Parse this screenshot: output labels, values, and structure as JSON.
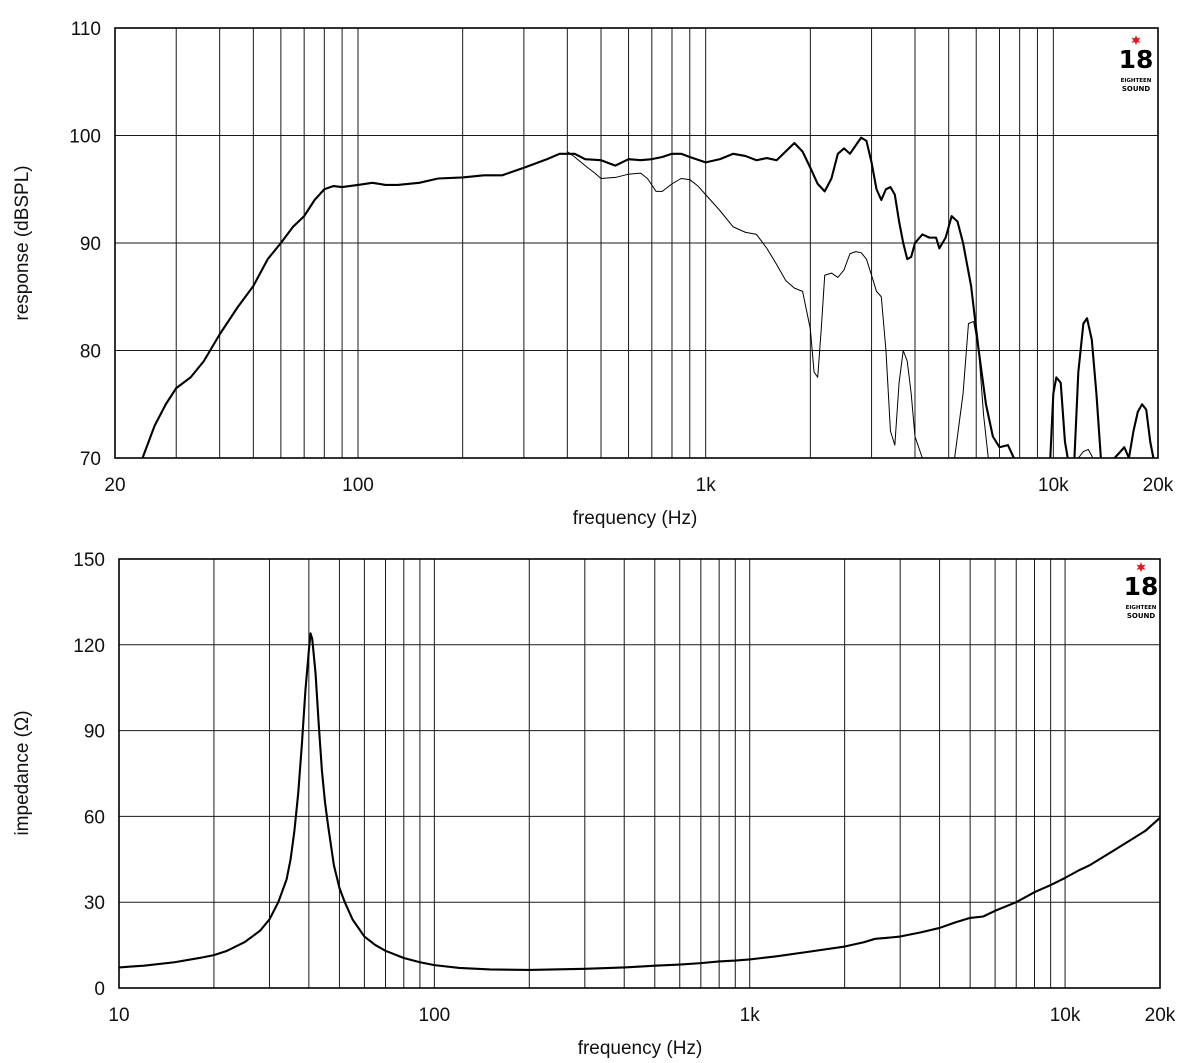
{
  "chart_data": [
    {
      "type": "line",
      "xscale": "log",
      "xlabel": "frequency (Hz)",
      "ylabel": "response (dBSPL)",
      "xlim": [
        20,
        20000
      ],
      "ylim": [
        70,
        110
      ],
      "x_ticks": [
        20,
        100,
        1000,
        10000,
        20000
      ],
      "x_tick_labels": [
        "20",
        "100",
        "1k",
        "10k",
        "20k"
      ],
      "y_ticks": [
        70,
        80,
        90,
        100,
        110
      ],
      "y_tick_labels": [
        "70",
        "80",
        "90",
        "100",
        "110"
      ],
      "grid": true,
      "series": [
        {
          "style": "thick",
          "points": [
            [
              24,
              70
            ],
            [
              26,
              73
            ],
            [
              28,
              75
            ],
            [
              30,
              76.5
            ],
            [
              33,
              77.5
            ],
            [
              36,
              79
            ],
            [
              40,
              81.5
            ],
            [
              45,
              84
            ],
            [
              50,
              86
            ],
            [
              55,
              88.5
            ],
            [
              60,
              90
            ],
            [
              65,
              91.5
            ],
            [
              70,
              92.5
            ],
            [
              75,
              94
            ],
            [
              80,
              95
            ],
            [
              85,
              95.3
            ],
            [
              90,
              95.2
            ],
            [
              100,
              95.4
            ],
            [
              110,
              95.6
            ],
            [
              120,
              95.4
            ],
            [
              130,
              95.4
            ],
            [
              150,
              95.6
            ],
            [
              170,
              96
            ],
            [
              200,
              96.1
            ],
            [
              230,
              96.3
            ],
            [
              260,
              96.3
            ],
            [
              300,
              97
            ],
            [
              350,
              97.8
            ],
            [
              380,
              98.3
            ],
            [
              420,
              98.3
            ],
            [
              450,
              97.8
            ],
            [
              500,
              97.7
            ],
            [
              550,
              97.2
            ],
            [
              600,
              97.8
            ],
            [
              650,
              97.7
            ],
            [
              700,
              97.8
            ],
            [
              750,
              98
            ],
            [
              800,
              98.3
            ],
            [
              850,
              98.3
            ],
            [
              900,
              98
            ],
            [
              1000,
              97.5
            ],
            [
              1100,
              97.8
            ],
            [
              1200,
              98.3
            ],
            [
              1300,
              98.1
            ],
            [
              1400,
              97.7
            ],
            [
              1500,
              97.9
            ],
            [
              1600,
              97.7
            ],
            [
              1800,
              99.3
            ],
            [
              1900,
              98.5
            ],
            [
              2000,
              97
            ],
            [
              2100,
              95.5
            ],
            [
              2200,
              94.8
            ],
            [
              2300,
              96
            ],
            [
              2400,
              98.3
            ],
            [
              2500,
              98.8
            ],
            [
              2600,
              98.3
            ],
            [
              2800,
              99.8
            ],
            [
              2900,
              99.5
            ],
            [
              3000,
              97.5
            ],
            [
              3100,
              95
            ],
            [
              3200,
              94
            ],
            [
              3300,
              95
            ],
            [
              3400,
              95.2
            ],
            [
              3500,
              94.5
            ],
            [
              3600,
              92
            ],
            [
              3700,
              90
            ],
            [
              3800,
              88.5
            ],
            [
              3900,
              88.7
            ],
            [
              4000,
              90
            ],
            [
              4200,
              90.8
            ],
            [
              4400,
              90.5
            ],
            [
              4600,
              90.5
            ],
            [
              4700,
              89.5
            ],
            [
              4900,
              90.5
            ],
            [
              5100,
              92.5
            ],
            [
              5300,
              92
            ],
            [
              5500,
              90
            ],
            [
              5800,
              86
            ],
            [
              6100,
              80
            ],
            [
              6400,
              75
            ],
            [
              6700,
              72
            ],
            [
              7000,
              71
            ],
            [
              7400,
              71.2
            ],
            [
              7700,
              70
            ]
          ]
        },
        {
          "style": "thick",
          "points": [
            [
              9800,
              70
            ],
            [
              10000,
              76
            ],
            [
              10200,
              77.5
            ],
            [
              10500,
              77
            ],
            [
              10800,
              71.5
            ],
            [
              11000,
              70
            ]
          ]
        },
        {
          "style": "thick",
          "points": [
            [
              11500,
              70
            ],
            [
              11800,
              78
            ],
            [
              12200,
              82.5
            ],
            [
              12500,
              83
            ],
            [
              12900,
              81
            ],
            [
              13300,
              76
            ],
            [
              13700,
              70
            ]
          ]
        },
        {
          "style": "thick",
          "points": [
            [
              15000,
              70
            ],
            [
              15500,
              70.5
            ],
            [
              16000,
              71
            ],
            [
              16500,
              70
            ]
          ]
        },
        {
          "style": "thick",
          "points": [
            [
              16500,
              70
            ],
            [
              17000,
              72.5
            ],
            [
              17500,
              74.3
            ],
            [
              18000,
              75
            ],
            [
              18500,
              74.5
            ],
            [
              19000,
              71.5
            ],
            [
              19400,
              70
            ]
          ]
        },
        {
          "style": "thin",
          "points": [
            [
              400,
              98.5
            ],
            [
              420,
              98
            ],
            [
              450,
              97.2
            ],
            [
              480,
              96.5
            ],
            [
              500,
              96
            ],
            [
              550,
              96.1
            ],
            [
              600,
              96.4
            ],
            [
              650,
              96.5
            ],
            [
              680,
              96
            ],
            [
              720,
              94.8
            ],
            [
              750,
              94.8
            ],
            [
              800,
              95.5
            ],
            [
              850,
              96
            ],
            [
              900,
              95.9
            ],
            [
              950,
              95.3
            ],
            [
              1000,
              94.5
            ],
            [
              1100,
              93
            ],
            [
              1200,
              91.5
            ],
            [
              1300,
              91
            ],
            [
              1400,
              90.8
            ],
            [
              1500,
              89.5
            ],
            [
              1600,
              88
            ],
            [
              1700,
              86.5
            ],
            [
              1800,
              85.8
            ],
            [
              1900,
              85.5
            ],
            [
              2000,
              82
            ],
            [
              2050,
              78
            ],
            [
              2100,
              77.5
            ],
            [
              2150,
              82
            ],
            [
              2200,
              87
            ],
            [
              2300,
              87.2
            ],
            [
              2400,
              86.8
            ],
            [
              2500,
              87.5
            ],
            [
              2600,
              89
            ],
            [
              2700,
              89.2
            ],
            [
              2800,
              89.1
            ],
            [
              2900,
              88.5
            ],
            [
              3000,
              87
            ],
            [
              3100,
              85.5
            ],
            [
              3200,
              85
            ],
            [
              3300,
              80
            ],
            [
              3400,
              72.5
            ],
            [
              3500,
              71.2
            ],
            [
              3600,
              77
            ],
            [
              3700,
              80
            ],
            [
              3800,
              79
            ],
            [
              3900,
              76
            ],
            [
              4000,
              72
            ],
            [
              4200,
              70
            ]
          ]
        },
        {
          "style": "thin",
          "points": [
            [
              5200,
              70
            ],
            [
              5500,
              76
            ],
            [
              5700,
              82.5
            ],
            [
              5900,
              82.7
            ],
            [
              6100,
              80
            ],
            [
              6300,
              74
            ],
            [
              6500,
              70
            ]
          ]
        },
        {
          "style": "thin",
          "points": [
            [
              11800,
              70
            ],
            [
              12200,
              70.6
            ],
            [
              12600,
              70.8
            ],
            [
              13000,
              70
            ]
          ]
        }
      ]
    },
    {
      "type": "line",
      "xscale": "log",
      "xlabel": "frequency (Hz)",
      "ylabel": "impedance (Ω)",
      "xlim": [
        10,
        20000
      ],
      "ylim": [
        0,
        150
      ],
      "x_ticks": [
        10,
        100,
        1000,
        10000,
        20000
      ],
      "x_tick_labels": [
        "10",
        "100",
        "1k",
        "10k",
        "20k"
      ],
      "y_ticks": [
        0,
        30,
        60,
        90,
        120,
        150
      ],
      "y_tick_labels": [
        "0",
        "30",
        "60",
        "90",
        "120",
        "150"
      ],
      "grid": true,
      "series": [
        {
          "style": "thick",
          "points": [
            [
              10,
              7.2
            ],
            [
              12,
              7.8
            ],
            [
              15,
              9
            ],
            [
              18,
              10.5
            ],
            [
              20,
              11.5
            ],
            [
              22,
              13
            ],
            [
              25,
              16
            ],
            [
              28,
              20
            ],
            [
              30,
              24
            ],
            [
              32,
              30
            ],
            [
              34,
              38
            ],
            [
              35,
              45
            ],
            [
              36,
              55
            ],
            [
              37,
              68
            ],
            [
              38,
              85
            ],
            [
              39,
              104
            ],
            [
              40,
              118
            ],
            [
              40.5,
              124
            ],
            [
              41,
              122
            ],
            [
              42,
              110
            ],
            [
              43,
              92
            ],
            [
              44,
              76
            ],
            [
              45,
              65
            ],
            [
              46,
              57
            ],
            [
              48,
              43
            ],
            [
              50,
              35
            ],
            [
              52,
              30
            ],
            [
              55,
              24
            ],
            [
              60,
              18
            ],
            [
              65,
              15
            ],
            [
              70,
              13
            ],
            [
              80,
              10.5
            ],
            [
              90,
              9
            ],
            [
              100,
              8
            ],
            [
              120,
              7
            ],
            [
              150,
              6.5
            ],
            [
              200,
              6.3
            ],
            [
              300,
              6.7
            ],
            [
              400,
              7.2
            ],
            [
              450,
              7.5
            ],
            [
              500,
              7.8
            ],
            [
              600,
              8.2
            ],
            [
              700,
              8.7
            ],
            [
              800,
              9.3
            ],
            [
              900,
              9.6
            ],
            [
              1000,
              10
            ],
            [
              1200,
              11
            ],
            [
              1500,
              12.5
            ],
            [
              2000,
              14.5
            ],
            [
              2300,
              16
            ],
            [
              2500,
              17.2
            ],
            [
              2700,
              17.5
            ],
            [
              3000,
              18
            ],
            [
              3500,
              19.5
            ],
            [
              4000,
              21
            ],
            [
              4500,
              23
            ],
            [
              5000,
              24.5
            ],
            [
              5500,
              25
            ],
            [
              6000,
              27
            ],
            [
              7000,
              30
            ],
            [
              8000,
              33.5
            ],
            [
              9000,
              36
            ],
            [
              10000,
              38.5
            ],
            [
              11000,
              41
            ],
            [
              12000,
              43
            ],
            [
              14000,
              47.5
            ],
            [
              16000,
              51.5
            ],
            [
              18000,
              55
            ],
            [
              20000,
              59.5
            ]
          ]
        }
      ]
    }
  ],
  "logo": {
    "number": "18",
    "small_text": "EIGHTEEN",
    "sound_text": "SOUND",
    "star_color": "#e4161d"
  },
  "colors": {
    "curve": "#000000",
    "grid": "#1a1a1a",
    "text": "#111111",
    "background": "#ffffff"
  }
}
